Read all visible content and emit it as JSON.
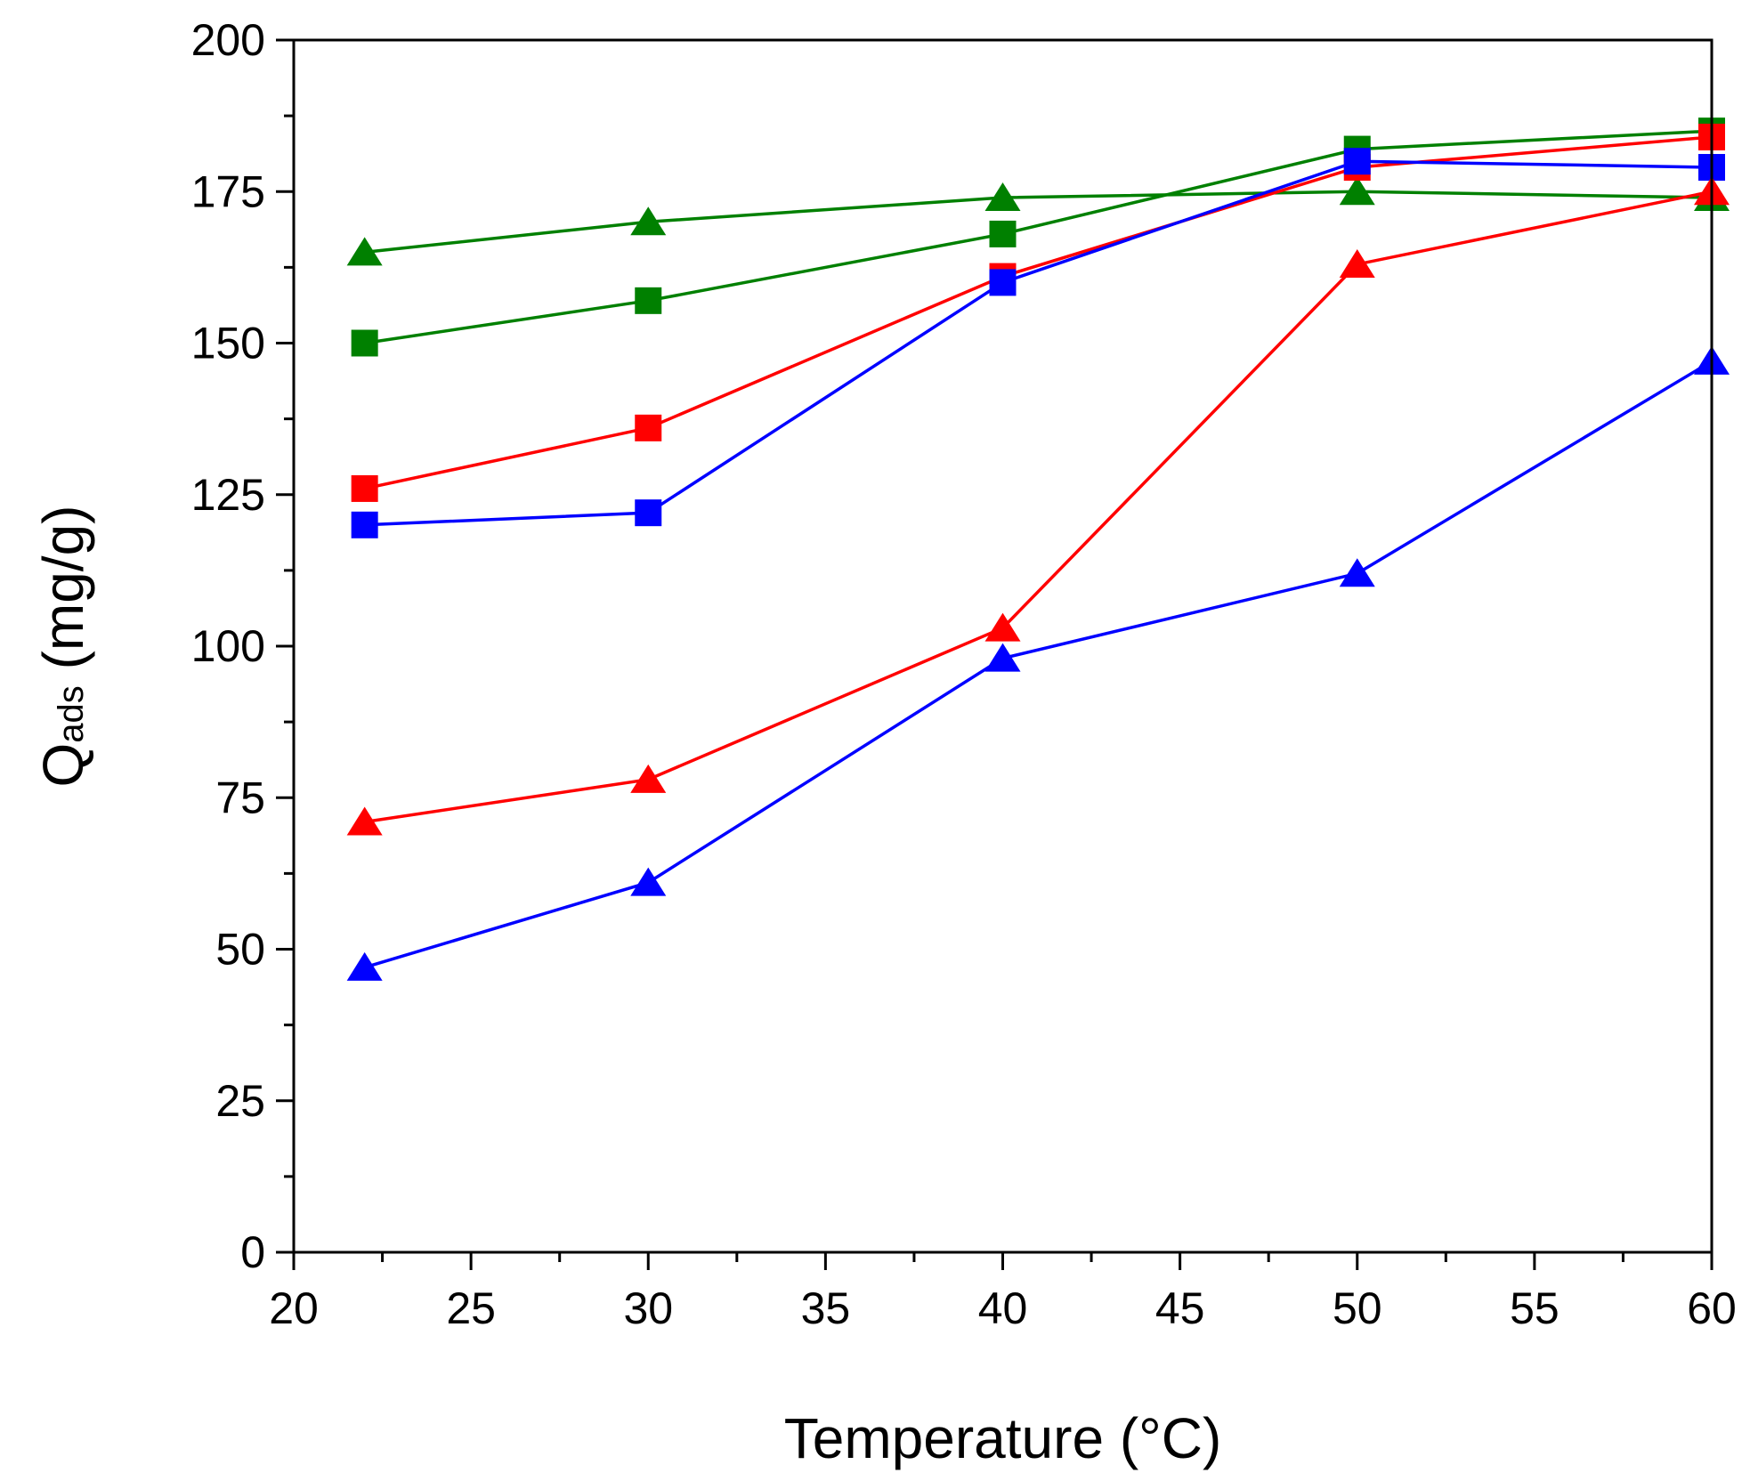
{
  "chart_data": {
    "type": "line",
    "title": "",
    "xlabel": "Temperature (°C)",
    "ylabel_main": "Q",
    "ylabel_sub": "ads",
    "ylabel_tail": " (mg/g)",
    "xlim": [
      20,
      60
    ],
    "ylim": [
      0,
      200
    ],
    "xticks": [
      "20",
      "25",
      "30",
      "35",
      "40",
      "45",
      "50",
      "55",
      "60"
    ],
    "yticks": [
      "0",
      "25",
      "50",
      "75",
      "100",
      "125",
      "150",
      "175",
      "200"
    ],
    "x": [
      22,
      30,
      40,
      50,
      60
    ],
    "grid": false,
    "legend": "none",
    "series": [
      {
        "marker": "triangle",
        "color": "#008000",
        "values": [
          165,
          170,
          174,
          175,
          174
        ]
      },
      {
        "marker": "square",
        "color": "#008000",
        "values": [
          150,
          157,
          168,
          182,
          185
        ]
      },
      {
        "marker": "square",
        "color": "#ff0000",
        "values": [
          126,
          136,
          161,
          179,
          184
        ]
      },
      {
        "marker": "square",
        "color": "#0000ff",
        "values": [
          120,
          122,
          160,
          180,
          179
        ]
      },
      {
        "marker": "triangle",
        "color": "#ff0000",
        "values": [
          71,
          78,
          103,
          163,
          175
        ]
      },
      {
        "marker": "triangle",
        "color": "#0000ff",
        "values": [
          47,
          61,
          98,
          112,
          147
        ]
      }
    ]
  }
}
